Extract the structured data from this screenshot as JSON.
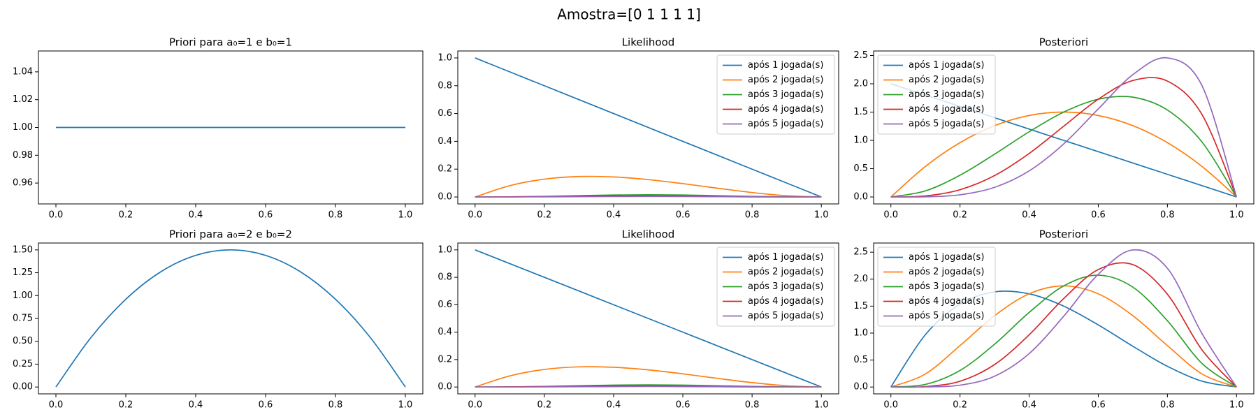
{
  "title": "Amostra=[0 1 1 1 1]",
  "chart_data": [
    {
      "type": "line",
      "title": "Priori para a₀=1 e b₀=1",
      "x": [
        0,
        0.1,
        0.2,
        0.3,
        0.4,
        0.5,
        0.6,
        0.7,
        0.8,
        0.9,
        1
      ],
      "xlim": [
        -0.05,
        1.05
      ],
      "xticks": [
        {
          "value": 0,
          "label": "0.0"
        },
        {
          "value": 0.2,
          "label": "0.2"
        },
        {
          "value": 0.4,
          "label": "0.4"
        },
        {
          "value": 0.6,
          "label": "0.6"
        },
        {
          "value": 0.8,
          "label": "0.8"
        },
        {
          "value": 1,
          "label": "1.0"
        }
      ],
      "ylim": [
        0.945,
        1.055
      ],
      "yticks": [
        0.96,
        0.98,
        {
          "value": 1,
          "label": "1.00"
        },
        1.02,
        1.04
      ],
      "series": [
        {
          "color": "#1f77b4",
          "values": [
            1,
            1,
            1,
            1,
            1,
            1,
            1,
            1,
            1,
            1,
            1
          ]
        }
      ]
    },
    {
      "type": "line",
      "title": "Likelihood",
      "x": [
        0,
        0.1,
        0.2,
        0.3,
        0.4,
        0.5,
        0.6,
        0.7,
        0.8,
        0.9,
        1
      ],
      "xlim": [
        -0.05,
        1.05
      ],
      "xticks": [
        {
          "value": 0,
          "label": "0.0"
        },
        {
          "value": 0.2,
          "label": "0.2"
        },
        {
          "value": 0.4,
          "label": "0.4"
        },
        {
          "value": 0.6,
          "label": "0.6"
        },
        {
          "value": 0.8,
          "label": "0.8"
        },
        {
          "value": 1,
          "label": "1.0"
        }
      ],
      "ylim": [
        -0.05,
        1.05
      ],
      "yticks": [
        {
          "value": 0,
          "label": "0.0"
        },
        0.2,
        0.4,
        0.6,
        0.8,
        {
          "value": 1,
          "label": "1.0"
        }
      ],
      "legend": "upper right",
      "series": [
        {
          "name": "após 1 jogada(s)",
          "color": "#1f77b4",
          "values": [
            1,
            0.9,
            0.8,
            0.7,
            0.6,
            0.5,
            0.4,
            0.3,
            0.2,
            0.1,
            0
          ]
        },
        {
          "name": "após 2 jogada(s)",
          "color": "#ff7f0e",
          "values": [
            0,
            0.081,
            0.128,
            0.147,
            0.144,
            0.125,
            0.096,
            0.063,
            0.032,
            0.009,
            0
          ]
        },
        {
          "name": "após 3 jogada(s)",
          "color": "#2ca02c",
          "values": [
            0,
            0.001,
            0.004,
            0.009,
            0.014,
            0.016,
            0.014,
            0.009,
            0.004,
            0.001,
            0
          ]
        },
        {
          "name": "após 4 jogada(s)",
          "color": "#d62728",
          "values": [
            0,
            0.001,
            0.003,
            0.007,
            0.008,
            0.008,
            0.006,
            0.003,
            0.001,
            0,
            0
          ]
        },
        {
          "name": "após 5 jogada(s)",
          "color": "#9467bd",
          "values": [
            0,
            0,
            0.001,
            0.002,
            0.003,
            0.004,
            0.003,
            0.002,
            0.001,
            0,
            0
          ]
        }
      ]
    },
    {
      "type": "line",
      "title": "Posteriori",
      "x": [
        0,
        0.1,
        0.2,
        0.3,
        0.4,
        0.5,
        0.6,
        0.7,
        0.8,
        0.9,
        1
      ],
      "xlim": [
        -0.05,
        1.05
      ],
      "xticks": [
        {
          "value": 0,
          "label": "0.0"
        },
        {
          "value": 0.2,
          "label": "0.2"
        },
        {
          "value": 0.4,
          "label": "0.4"
        },
        {
          "value": 0.6,
          "label": "0.6"
        },
        {
          "value": 0.8,
          "label": "0.8"
        },
        {
          "value": 1,
          "label": "1.0"
        }
      ],
      "ylim": [
        -0.123,
        2.58
      ],
      "yticks": [
        {
          "value": 0,
          "label": "0.0"
        },
        0.5,
        {
          "value": 1,
          "label": "1.0"
        },
        1.5,
        {
          "value": 2,
          "label": "2.0"
        },
        2.5
      ],
      "legend": "upper left",
      "series": [
        {
          "name": "após 1 jogada(s)",
          "color": "#1f77b4",
          "values": [
            2,
            1.8,
            1.6,
            1.4,
            1.2,
            1,
            0.8,
            0.6,
            0.4,
            0.2,
            0
          ]
        },
        {
          "name": "após 2 jogada(s)",
          "color": "#ff7f0e",
          "values": [
            0,
            0.54,
            0.96,
            1.26,
            1.44,
            1.5,
            1.44,
            1.26,
            0.96,
            0.54,
            0
          ]
        },
        {
          "name": "após 3 jogada(s)",
          "color": "#2ca02c",
          "values": [
            0,
            0.108,
            0.384,
            0.756,
            1.152,
            1.5,
            1.728,
            1.764,
            1.536,
            0.972,
            0
          ]
        },
        {
          "name": "após 4 jogada(s)",
          "color": "#d62728",
          "values": [
            0,
            0.018,
            0.128,
            0.378,
            0.768,
            1.25,
            1.728,
            2.058,
            2.048,
            1.458,
            0
          ]
        },
        {
          "name": "após 5 jogada(s)",
          "color": "#9467bd",
          "values": [
            0,
            0.0027,
            0.0384,
            0.1701,
            0.4608,
            0.9375,
            1.5552,
            2.1609,
            2.4576,
            1.9683,
            0
          ]
        }
      ]
    },
    {
      "type": "line",
      "title": "Priori para a₀=2 e b₀=2",
      "x": [
        0,
        0.1,
        0.2,
        0.3,
        0.4,
        0.5,
        0.6,
        0.7,
        0.8,
        0.9,
        1
      ],
      "xlim": [
        -0.05,
        1.05
      ],
      "xticks": [
        {
          "value": 0,
          "label": "0.0"
        },
        {
          "value": 0.2,
          "label": "0.2"
        },
        {
          "value": 0.4,
          "label": "0.4"
        },
        {
          "value": 0.6,
          "label": "0.6"
        },
        {
          "value": 0.8,
          "label": "0.8"
        },
        {
          "value": 1,
          "label": "1.0"
        }
      ],
      "ylim": [
        -0.075,
        1.575
      ],
      "yticks": [
        {
          "value": 0,
          "label": "0.00"
        },
        0.25,
        {
          "value": 0.5,
          "label": "0.50"
        },
        0.75,
        {
          "value": 1,
          "label": "1.00"
        },
        1.25,
        {
          "value": 1.5,
          "label": "1.50"
        }
      ],
      "series": [
        {
          "color": "#1f77b4",
          "values": [
            0,
            0.54,
            0.96,
            1.26,
            1.44,
            1.5,
            1.44,
            1.26,
            0.96,
            0.54,
            0
          ]
        }
      ]
    },
    {
      "type": "line",
      "title": "Likelihood",
      "x": [
        0,
        0.1,
        0.2,
        0.3,
        0.4,
        0.5,
        0.6,
        0.7,
        0.8,
        0.9,
        1
      ],
      "xlim": [
        -0.05,
        1.05
      ],
      "xticks": [
        {
          "value": 0,
          "label": "0.0"
        },
        {
          "value": 0.2,
          "label": "0.2"
        },
        {
          "value": 0.4,
          "label": "0.4"
        },
        {
          "value": 0.6,
          "label": "0.6"
        },
        {
          "value": 0.8,
          "label": "0.8"
        },
        {
          "value": 1,
          "label": "1.0"
        }
      ],
      "ylim": [
        -0.05,
        1.05
      ],
      "yticks": [
        {
          "value": 0,
          "label": "0.0"
        },
        0.2,
        0.4,
        0.6,
        0.8,
        {
          "value": 1,
          "label": "1.0"
        }
      ],
      "legend": "upper right",
      "series": [
        {
          "name": "após 1 jogada(s)",
          "color": "#1f77b4",
          "values": [
            1,
            0.9,
            0.8,
            0.7,
            0.6,
            0.5,
            0.4,
            0.3,
            0.2,
            0.1,
            0
          ]
        },
        {
          "name": "após 2 jogada(s)",
          "color": "#ff7f0e",
          "values": [
            0,
            0.081,
            0.128,
            0.147,
            0.144,
            0.125,
            0.096,
            0.063,
            0.032,
            0.009,
            0
          ]
        },
        {
          "name": "após 3 jogada(s)",
          "color": "#2ca02c",
          "values": [
            0,
            0.001,
            0.004,
            0.009,
            0.014,
            0.016,
            0.014,
            0.009,
            0.004,
            0.001,
            0
          ]
        },
        {
          "name": "após 4 jogada(s)",
          "color": "#d62728",
          "values": [
            0,
            0.001,
            0.003,
            0.007,
            0.008,
            0.008,
            0.006,
            0.003,
            0.001,
            0,
            0
          ]
        },
        {
          "name": "após 5 jogada(s)",
          "color": "#9467bd",
          "values": [
            0,
            0,
            0.001,
            0.002,
            0.003,
            0.004,
            0.003,
            0.002,
            0.001,
            0,
            0
          ]
        }
      ]
    },
    {
      "type": "line",
      "title": "Posteriori",
      "x": [
        0,
        0.1,
        0.2,
        0.3,
        0.4,
        0.5,
        0.6,
        0.7,
        0.8,
        0.9,
        1
      ],
      "xlim": [
        -0.05,
        1.05
      ],
      "xticks": [
        {
          "value": 0,
          "label": "0.0"
        },
        {
          "value": 0.2,
          "label": "0.2"
        },
        {
          "value": 0.4,
          "label": "0.4"
        },
        {
          "value": 0.6,
          "label": "0.6"
        },
        {
          "value": 0.8,
          "label": "0.8"
        },
        {
          "value": 1,
          "label": "1.0"
        }
      ],
      "ylim": [
        -0.127,
        2.67
      ],
      "yticks": [
        {
          "value": 0,
          "label": "0.0"
        },
        0.5,
        {
          "value": 1,
          "label": "1.0"
        },
        1.5,
        {
          "value": 2,
          "label": "2.0"
        },
        2.5
      ],
      "legend": "upper left",
      "series": [
        {
          "name": "após 1 jogada(s)",
          "color": "#1f77b4",
          "values": [
            0,
            0.972,
            1.536,
            1.764,
            1.728,
            1.5,
            1.152,
            0.756,
            0.384,
            0.108,
            0
          ]
        },
        {
          "name": "após 2 jogada(s)",
          "color": "#ff7f0e",
          "values": [
            0,
            0.243,
            0.768,
            1.323,
            1.728,
            1.875,
            1.728,
            1.323,
            0.768,
            0.243,
            0
          ]
        },
        {
          "name": "após 3 jogada(s)",
          "color": "#2ca02c",
          "values": [
            0,
            0.0486,
            0.3072,
            0.7938,
            1.3824,
            1.875,
            2.0736,
            1.8522,
            1.2288,
            0.4374,
            0
          ]
        },
        {
          "name": "após 4 jogada(s)",
          "color": "#d62728",
          "values": [
            0,
            0.0085,
            0.1075,
            0.4167,
            0.9677,
            1.6406,
            2.1773,
            2.2689,
            1.7203,
            0.6889,
            0
          ]
        },
        {
          "name": "após 5 jogada(s)",
          "color": "#9467bd",
          "values": [
            0,
            0.0014,
            0.0344,
            0.2,
            0.6193,
            1.3125,
            2.0902,
            2.5412,
            2.202,
            0.992,
            0
          ]
        }
      ]
    }
  ]
}
